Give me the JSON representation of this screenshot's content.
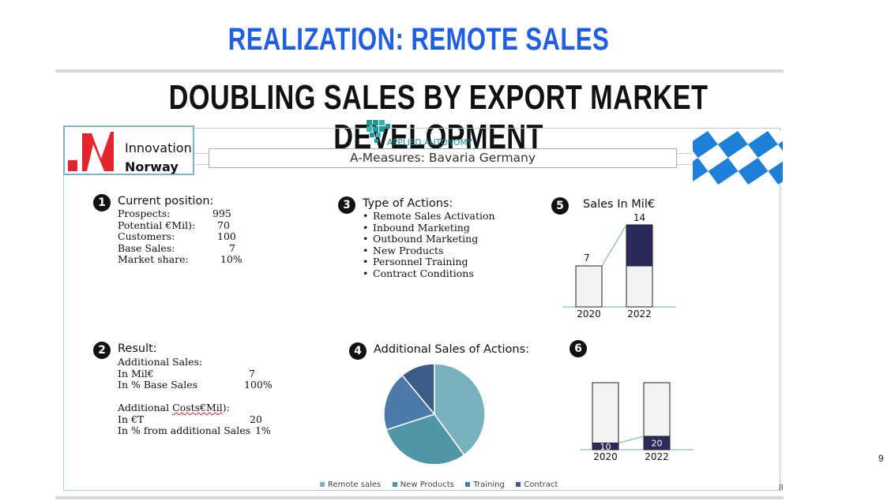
{
  "slide": {
    "title": "REALIZATION: REMOTE SALES",
    "subtitle": "DOUBLING SALES BY EXPORT MARKET DEVELOPMENT",
    "page_number": "9",
    "inner_page_number": "8"
  },
  "logo": {
    "line1": "Innovation",
    "line2": "Norway",
    "mark_color": "#e3262d"
  },
  "brand": {
    "name": "APPLIED AUTONOMY",
    "color": "#1a9b9a"
  },
  "measures_title": "A-Measures: Bavaria Germany",
  "colors": {
    "navy": "#2b2a5c",
    "bar_light": "#f2f2f2",
    "bavaria_blue": "#1d7fd6",
    "remote": "#78b2bf",
    "products": "#4f96a6",
    "training": "#4d7aa8",
    "contract": "#3a5d85"
  },
  "section1": {
    "badge": "1",
    "title": "Current position:",
    "rows": [
      {
        "label": "Prospects:",
        "value": "995"
      },
      {
        "label": "Potential €Mil):",
        "value": "70"
      },
      {
        "label": "Customers:",
        "value": "100"
      },
      {
        "label": "Base Sales:",
        "value": "7"
      },
      {
        "label": "Market share:",
        "value": "10%"
      }
    ]
  },
  "section2": {
    "badge": "2",
    "title": "Result:",
    "heading1": "Additional Sales:",
    "row1": {
      "label": "In Mil€",
      "value": "7"
    },
    "row2": {
      "label": "In % Base Sales",
      "value": "100%"
    },
    "heading2_a": "Additional ",
    "heading2_b": "Costs€Mil",
    "heading2_c": "):",
    "row3": {
      "label": "In €T",
      "value": "20"
    },
    "row4": {
      "label": "In % from additional Sales",
      "value": "1%"
    }
  },
  "section3": {
    "badge": "3",
    "title": "Type of Actions:",
    "items": [
      "Remote Sales Activation",
      "Inbound Marketing",
      "Outbound Marketing",
      "New Products",
      "Personnel Training",
      "Contract Conditions"
    ]
  },
  "section4": {
    "badge": "4",
    "title": "Additional Sales of Actions:"
  },
  "section5": {
    "badge": "5",
    "title": "Sales In Mil€"
  },
  "section6": {
    "badge": "6"
  },
  "chart_data": [
    {
      "type": "bar",
      "title": "Sales In Mil€",
      "categories": [
        "2020",
        "2022"
      ],
      "series": [
        {
          "values": [
            7,
            7
          ],
          "color": "#f2f2f2"
        },
        {
          "values": [
            0,
            7
          ],
          "color": "#2b2a5c"
        }
      ],
      "data_labels": [
        "7",
        "14"
      ],
      "stacked": true
    },
    {
      "type": "pie",
      "title": "Additional Sales of Actions:",
      "labels": [
        "Remote sales",
        "New Products",
        "Training",
        "Contract"
      ],
      "values": [
        40,
        30,
        19,
        11
      ],
      "colors": [
        "#78b2bf",
        "#4f96a6",
        "#4d7aa8",
        "#3a5d85"
      ],
      "legend": "bottom"
    },
    {
      "type": "bar",
      "categories": [
        "2020",
        "2022"
      ],
      "series": [
        {
          "values": [
            10,
            20
          ],
          "color": "#2b2a5c"
        },
        {
          "values": [
            90,
            80
          ],
          "color": "#f2f2f2"
        }
      ],
      "data_labels": [
        "10",
        "20"
      ],
      "stacked": true
    }
  ]
}
